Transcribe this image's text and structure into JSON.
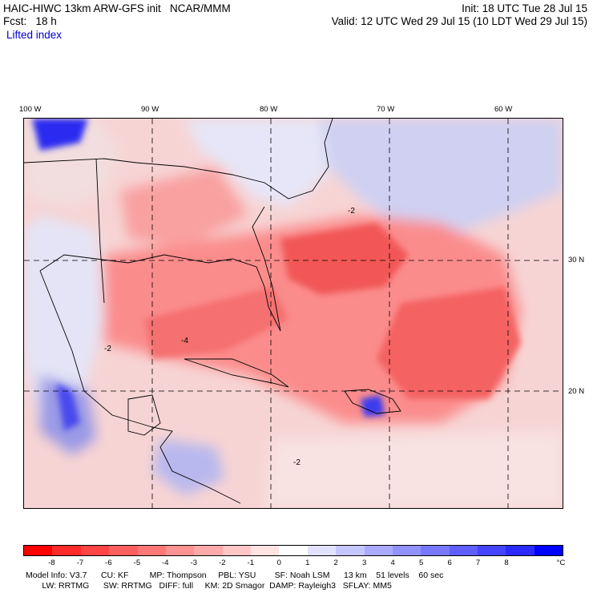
{
  "header": {
    "model_title": "HAIC-HIWC 13km ARW-GFS init   NCAR/MMM",
    "init": "Init: 18 UTC Tue 28 Jul 15",
    "forecast": "Fcst:   18 h",
    "valid": "Valid: 12 UTC Wed 29 Jul 15 (10 LDT Wed 29 Jul 15)",
    "field": "Lifted index"
  },
  "map": {
    "longitude_labels": [
      "100 W",
      "90 W",
      "80 W",
      "70 W",
      "60 W"
    ],
    "latitude_labels": [
      "30 N",
      "20 N"
    ],
    "contour_labels": [
      "-2",
      "-4",
      "-2",
      "-2"
    ]
  },
  "colorbar": {
    "labels": [
      "-8",
      "-7",
      "-6",
      "-5",
      "-4",
      "-3",
      "-2",
      "-1",
      "0",
      "1",
      "2",
      "3",
      "4",
      "5",
      "6",
      "7",
      "8"
    ],
    "unit": "°C",
    "colors": [
      "#ff0000",
      "#ff2a2a",
      "#ff4444",
      "#ff5f5f",
      "#ff7777",
      "#ff9292",
      "#ffaaaa",
      "#ffc6c6",
      "#ffe2e2",
      "#ffffff",
      "#e2e2ff",
      "#c6c6ff",
      "#aaaaff",
      "#9292ff",
      "#7777ff",
      "#5f5fff",
      "#4444ff",
      "#2a2aff",
      "#0000ff"
    ]
  },
  "model_info": {
    "line1": "Model Info: V3.7      CU: KF         MP: Thompson     PBL: YSU        SF: Noah LSM      13 km    51 levels    60 sec",
    "line2": "       LW: RRTMG      SW: RRTMG   DIFF: full     KM: 2D Smagor  DAMP: Rayleigh3   SFLAY: MM5"
  }
}
